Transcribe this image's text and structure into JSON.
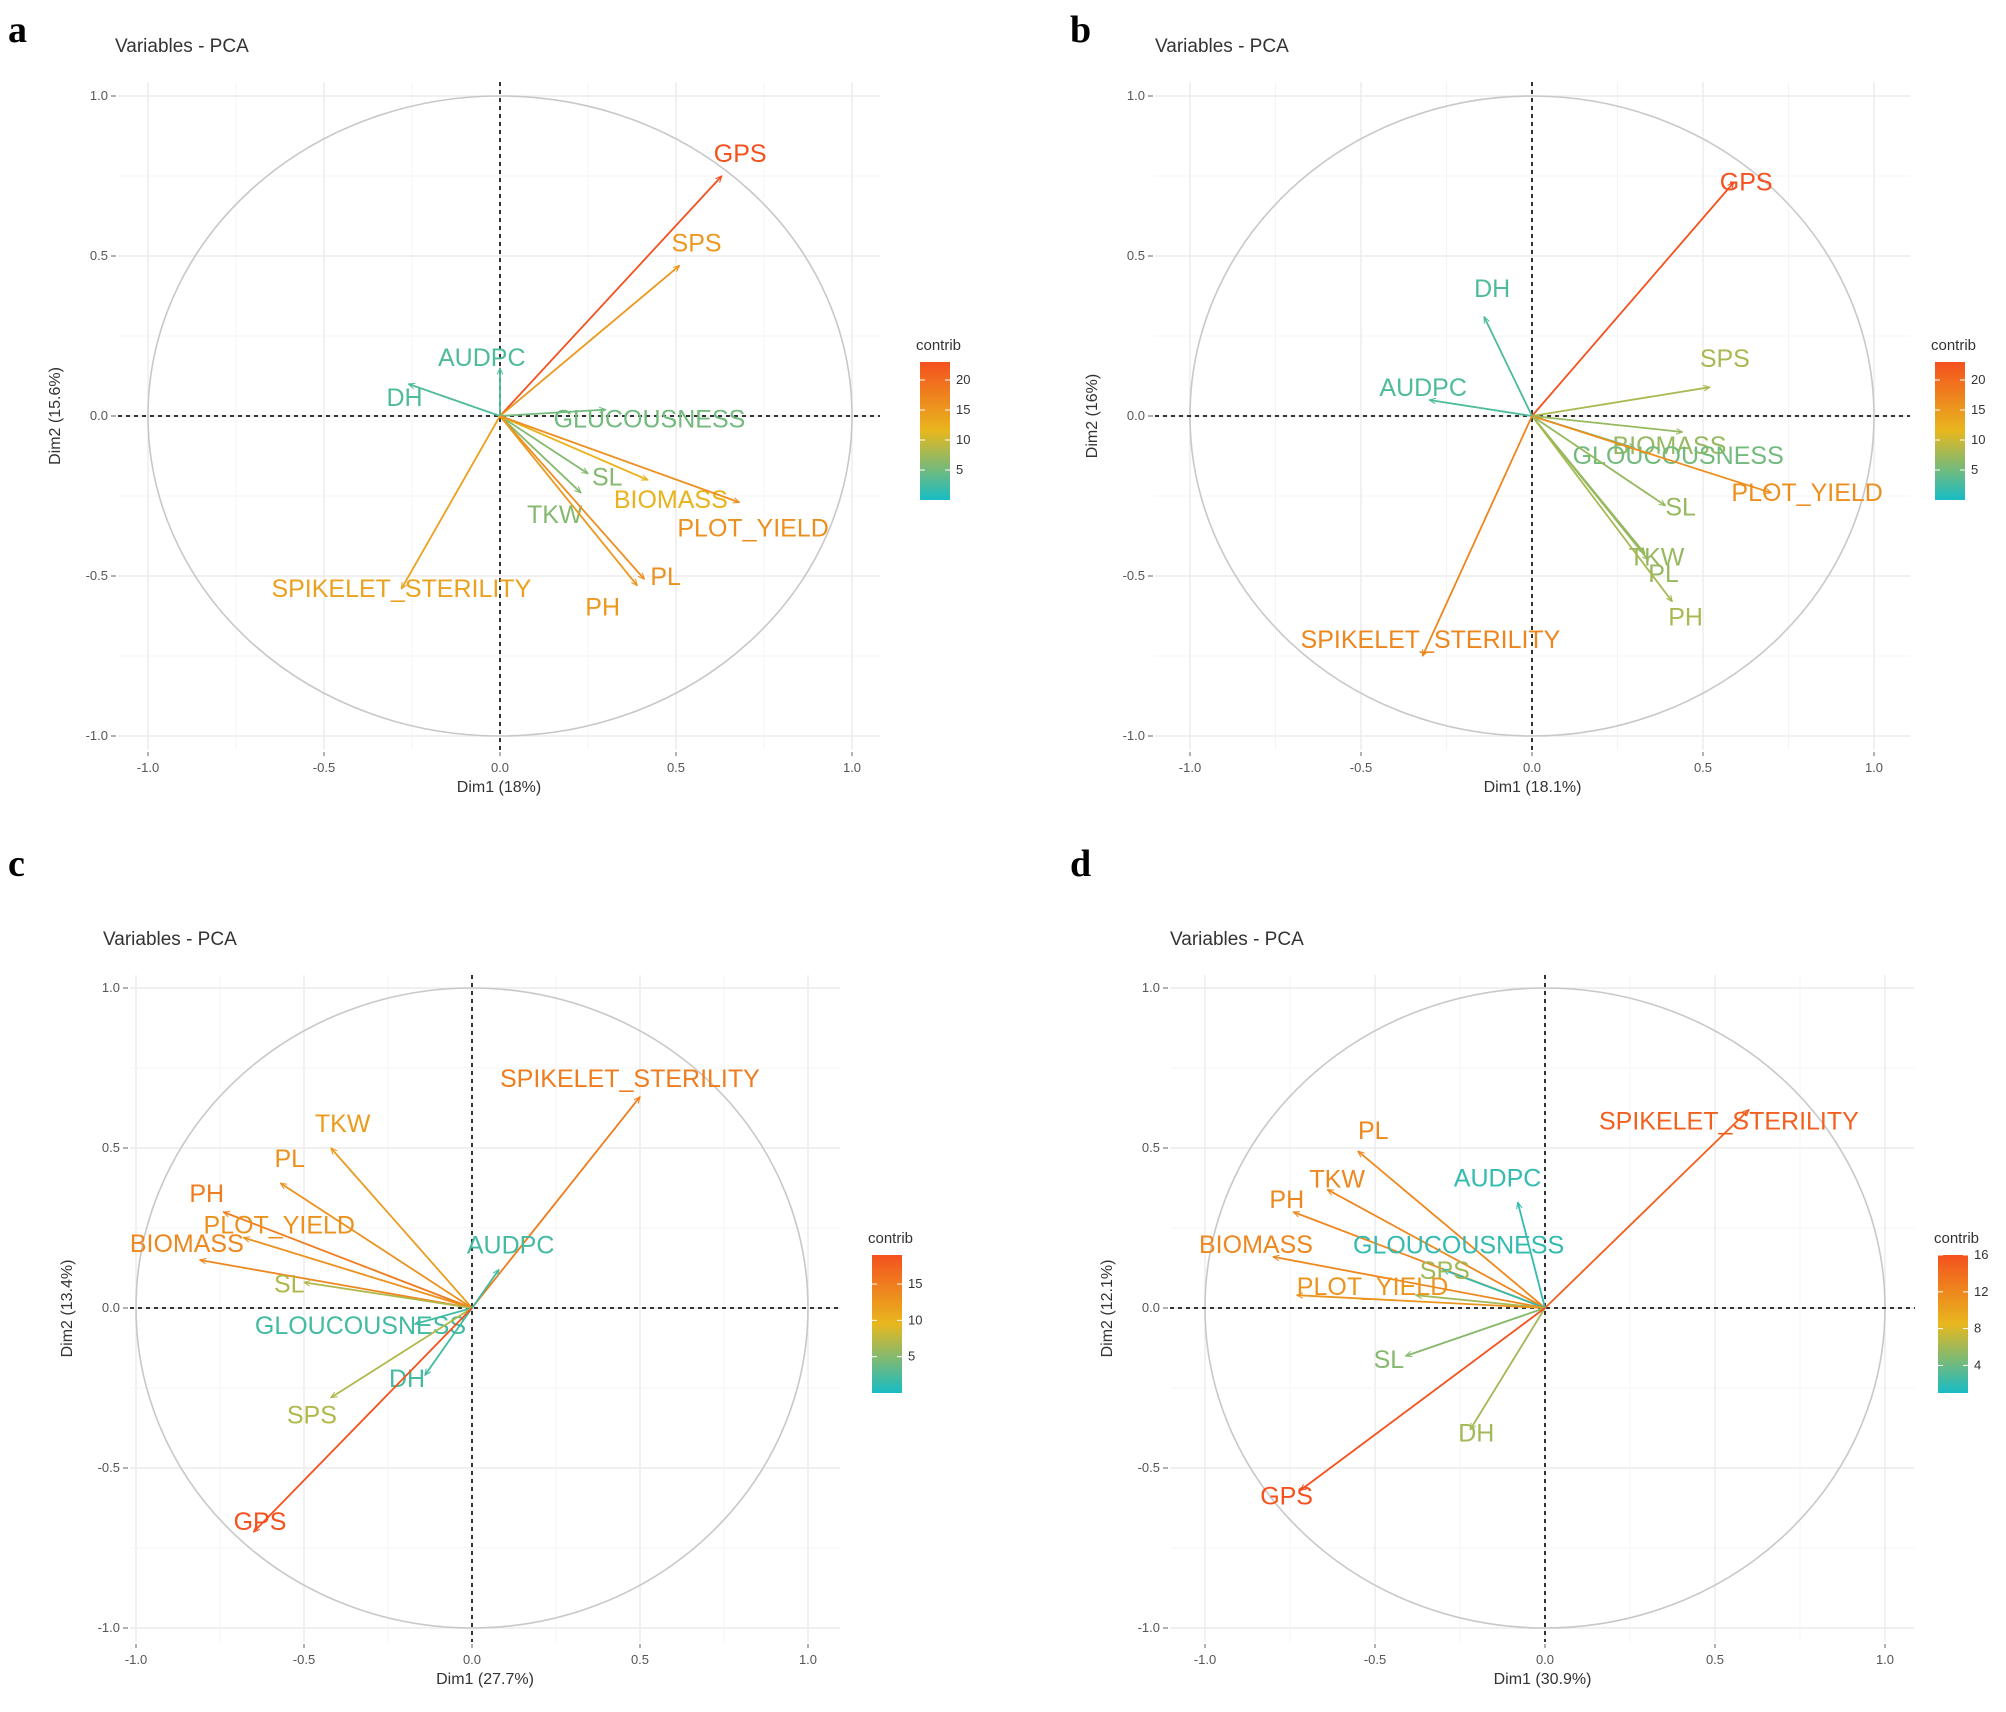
{
  "figure": {
    "legend_colors": {
      "low": "#17bcc6",
      "mid": "#e8b71e",
      "high": "#f4511e"
    },
    "panels": [
      {
        "letter": "a",
        "title": "Variables - PCA",
        "xlabel": "Dim1 (18%)",
        "ylabel": "Dim2 (15.6%)",
        "legend_title": "contrib",
        "legend_ticks": [
          5,
          10,
          15,
          20
        ],
        "contrib_range": [
          0,
          23
        ]
      },
      {
        "letter": "b",
        "title": "Variables - PCA",
        "xlabel": "Dim1 (18.1%)",
        "ylabel": "Dim2 (16%)",
        "legend_title": "contrib",
        "legend_ticks": [
          5,
          10,
          15,
          20
        ],
        "contrib_range": [
          0,
          23
        ]
      },
      {
        "letter": "c",
        "title": "Variables - PCA",
        "xlabel": "Dim1 (27.7%)",
        "ylabel": "Dim2 (13.4%)",
        "legend_title": "contrib",
        "legend_ticks": [
          5,
          10,
          15
        ],
        "contrib_range": [
          0,
          19
        ]
      },
      {
        "letter": "d",
        "title": "Variables - PCA",
        "xlabel": "Dim1 (30.9%)",
        "ylabel": "Dim2 (12.1%)",
        "legend_title": "contrib",
        "legend_ticks": [
          4,
          8,
          12,
          16
        ],
        "contrib_range": [
          1,
          16
        ]
      }
    ]
  },
  "chart_data": [
    {
      "type": "scatter",
      "subtype": "pca-variable-correlation-circle",
      "title": "Variables - PCA",
      "xlabel": "Dim1 (18%)",
      "ylabel": "Dim2 (15.6%)",
      "xlim": [
        -1,
        1
      ],
      "ylim": [
        -1,
        1
      ],
      "x_ticks": [
        "-1.0",
        "-0.5",
        "0.0",
        "0.5",
        "1.0"
      ],
      "y_ticks": [
        "-1.0",
        "-0.5",
        "0.0",
        "0.5",
        "1.0"
      ],
      "color_variable": "contrib",
      "variables": [
        {
          "name": "GPS",
          "x": 0.63,
          "y": 0.75,
          "contrib": 23
        },
        {
          "name": "SPS",
          "x": 0.51,
          "y": 0.47,
          "contrib": 15
        },
        {
          "name": "AUDPC",
          "x": 0.0,
          "y": 0.15,
          "contrib": 3
        },
        {
          "name": "DH",
          "x": -0.26,
          "y": 0.1,
          "contrib": 3
        },
        {
          "name": "GLUCOUSNESS",
          "x": 0.3,
          "y": 0.02,
          "contrib": 5
        },
        {
          "name": "SL",
          "x": 0.25,
          "y": -0.18,
          "contrib": 6
        },
        {
          "name": "BIOMASS",
          "x": 0.42,
          "y": -0.2,
          "contrib": 12
        },
        {
          "name": "TKW",
          "x": 0.23,
          "y": -0.24,
          "contrib": 6
        },
        {
          "name": "PLOT_YIELD",
          "x": 0.68,
          "y": -0.27,
          "contrib": 16
        },
        {
          "name": "PL",
          "x": 0.41,
          "y": -0.51,
          "contrib": 16
        },
        {
          "name": "PH",
          "x": 0.39,
          "y": -0.53,
          "contrib": 15
        },
        {
          "name": "SPIKELET_STERILITY",
          "x": -0.28,
          "y": -0.54,
          "contrib": 14
        }
      ]
    },
    {
      "type": "scatter",
      "subtype": "pca-variable-correlation-circle",
      "title": "Variables - PCA",
      "xlabel": "Dim1 (18.1%)",
      "ylabel": "Dim2 (16%)",
      "xlim": [
        -1,
        1
      ],
      "ylim": [
        -1,
        1
      ],
      "x_ticks": [
        "-1.0",
        "-0.5",
        "0.0",
        "0.5",
        "1.0"
      ],
      "y_ticks": [
        "-1.0",
        "-0.5",
        "0.0",
        "0.5",
        "1.0"
      ],
      "color_variable": "contrib",
      "variables": [
        {
          "name": "GPS",
          "x": 0.59,
          "y": 0.73,
          "contrib": 23
        },
        {
          "name": "DH",
          "x": -0.14,
          "y": 0.31,
          "contrib": 3
        },
        {
          "name": "AUDPC",
          "x": -0.3,
          "y": 0.05,
          "contrib": 3
        },
        {
          "name": "SPS",
          "x": 0.52,
          "y": 0.09,
          "contrib": 8
        },
        {
          "name": "BIOMASS",
          "x": 0.44,
          "y": -0.05,
          "contrib": 7
        },
        {
          "name": "GLOUCOUSNESS",
          "x": 0.3,
          "y": -0.1,
          "contrib": 5
        },
        {
          "name": "PLOT_YIELD",
          "x": 0.7,
          "y": -0.24,
          "contrib": 16
        },
        {
          "name": "SL",
          "x": 0.39,
          "y": -0.28,
          "contrib": 7
        },
        {
          "name": "TKW",
          "x": 0.33,
          "y": -0.43,
          "contrib": 7
        },
        {
          "name": "PL",
          "x": 0.34,
          "y": -0.45,
          "contrib": 7
        },
        {
          "name": "PH",
          "x": 0.41,
          "y": -0.58,
          "contrib": 8
        },
        {
          "name": "SPIKELET_STERILITY",
          "x": -0.32,
          "y": -0.75,
          "contrib": 17
        }
      ]
    },
    {
      "type": "scatter",
      "subtype": "pca-variable-correlation-circle",
      "title": "Variables - PCA",
      "xlabel": "Dim1 (27.7%)",
      "ylabel": "Dim2 (13.4%)",
      "xlim": [
        -1,
        1
      ],
      "ylim": [
        -1,
        1
      ],
      "x_ticks": [
        "-1.0",
        "-0.5",
        "0.0",
        "0.5",
        "1.0"
      ],
      "y_ticks": [
        "-1.0",
        "-0.5",
        "0.0",
        "0.5",
        "1.0"
      ],
      "color_variable": "contrib",
      "variables": [
        {
          "name": "SPIKELET_STERILITY",
          "x": 0.5,
          "y": 0.66,
          "contrib": 15
        },
        {
          "name": "TKW",
          "x": -0.42,
          "y": 0.5,
          "contrib": 12
        },
        {
          "name": "PL",
          "x": -0.57,
          "y": 0.39,
          "contrib": 13
        },
        {
          "name": "PH",
          "x": -0.74,
          "y": 0.3,
          "contrib": 15
        },
        {
          "name": "PLOT_YIELD",
          "x": -0.68,
          "y": 0.22,
          "contrib": 13
        },
        {
          "name": "BIOMASS",
          "x": -0.81,
          "y": 0.15,
          "contrib": 14
        },
        {
          "name": "AUDPC",
          "x": 0.08,
          "y": 0.12,
          "contrib": 2
        },
        {
          "name": "SL",
          "x": -0.5,
          "y": 0.08,
          "contrib": 7
        },
        {
          "name": "GLOUCOUSNESS",
          "x": -0.17,
          "y": -0.05,
          "contrib": 2
        },
        {
          "name": "DH",
          "x": -0.14,
          "y": -0.21,
          "contrib": 2
        },
        {
          "name": "SPS",
          "x": -0.42,
          "y": -0.28,
          "contrib": 7
        },
        {
          "name": "GPS",
          "x": -0.65,
          "y": -0.7,
          "contrib": 19
        }
      ]
    },
    {
      "type": "scatter",
      "subtype": "pca-variable-correlation-circle",
      "title": "Variables - PCA",
      "xlabel": "Dim1 (30.9%)",
      "ylabel": "Dim2 (12.1%)",
      "xlim": [
        -1,
        1
      ],
      "ylim": [
        -1,
        1
      ],
      "x_ticks": [
        "-1.0",
        "-0.5",
        "0.0",
        "0.5",
        "1.0"
      ],
      "y_ticks": [
        "-1.0",
        "-0.5",
        "0.0",
        "0.5",
        "1.0"
      ],
      "color_variable": "contrib",
      "variables": [
        {
          "name": "SPIKELET_STERILITY",
          "x": 0.6,
          "y": 0.62,
          "contrib": 15
        },
        {
          "name": "PL",
          "x": -0.55,
          "y": 0.49,
          "contrib": 12
        },
        {
          "name": "TKW",
          "x": -0.64,
          "y": 0.37,
          "contrib": 12
        },
        {
          "name": "AUDPC",
          "x": -0.08,
          "y": 0.33,
          "contrib": 2
        },
        {
          "name": "PH",
          "x": -0.74,
          "y": 0.3,
          "contrib": 12
        },
        {
          "name": "GLOUCOUSNESS",
          "x": -0.3,
          "y": 0.12,
          "contrib": 2
        },
        {
          "name": "BIOMASS",
          "x": -0.8,
          "y": 0.16,
          "contrib": 12
        },
        {
          "name": "SPS",
          "x": -0.38,
          "y": 0.04,
          "contrib": 6
        },
        {
          "name": "PLOT_YIELD",
          "x": -0.73,
          "y": 0.04,
          "contrib": 11
        },
        {
          "name": "SL",
          "x": -0.41,
          "y": -0.15,
          "contrib": 5
        },
        {
          "name": "DH",
          "x": -0.22,
          "y": -0.38,
          "contrib": 6
        },
        {
          "name": "GPS",
          "x": -0.72,
          "y": -0.57,
          "contrib": 16
        }
      ]
    }
  ]
}
